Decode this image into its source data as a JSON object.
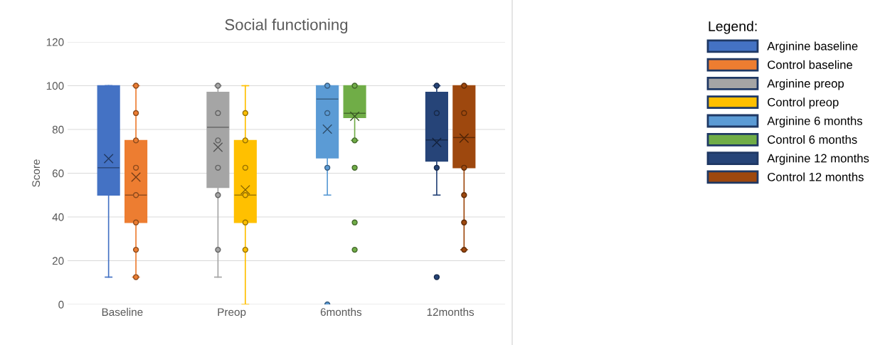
{
  "chart_data": {
    "type": "box",
    "title": "Social functioning",
    "ylabel": "Score",
    "legend_title": "Legend:",
    "categories": [
      "Baseline",
      "Preop",
      "6months",
      "12months"
    ],
    "ylim": [
      0,
      120
    ],
    "yticks": [
      0,
      20,
      40,
      60,
      80,
      100,
      120
    ],
    "grid": "y",
    "legend": "right",
    "series": [
      {
        "name": "Arginine baseline",
        "color": "#4472c4",
        "boxes": [
          {
            "low": 12.5,
            "q1": 50,
            "median": 62.5,
            "q3": 100,
            "high": 100,
            "mean": 66.7
          },
          null,
          null,
          null
        ]
      },
      {
        "name": "Control baseline",
        "color": "#ed7d31",
        "boxes": [
          {
            "low": 12.5,
            "q1": 37.5,
            "median": 50,
            "q3": 75,
            "high": 100,
            "mean": 58.2,
            "outliers": [
              100,
              87.5,
              75,
              62.5,
              50,
              37.5,
              25,
              12.5
            ]
          },
          null,
          null,
          null
        ]
      },
      {
        "name": "Arginine preop",
        "color": "#a5a5a5",
        "boxes": [
          null,
          {
            "low": 12.5,
            "q1": 53.5,
            "median": 81,
            "q3": 97,
            "high": 100,
            "mean": 71.9,
            "outliers": [
              100,
              87.5,
              75,
              62.5,
              50,
              25
            ]
          },
          null,
          null
        ]
      },
      {
        "name": "Control preop",
        "color": "#ffc000",
        "boxes": [
          null,
          {
            "low": 0,
            "q1": 37.5,
            "median": 50,
            "q3": 75,
            "high": 100,
            "mean": 52.4,
            "outliers": [
              87.5,
              75,
              62.5,
              50,
              37.5,
              25
            ]
          },
          null,
          null
        ]
      },
      {
        "name": "Arginine 6 months",
        "color": "#5b9bd5",
        "boxes": [
          null,
          null,
          {
            "low": 50,
            "q1": 67,
            "median": 93.9,
            "q3": 100,
            "high": 100,
            "mean": 80.2,
            "outliers": [
              100,
              87.5,
              62.5,
              0
            ]
          },
          null
        ]
      },
      {
        "name": "Control 6 months",
        "color": "#70ad47",
        "boxes": [
          null,
          null,
          {
            "low": 75,
            "q1": 85.4,
            "median": 87.4,
            "q3": 100,
            "high": 100,
            "mean": 86,
            "outliers": [
              100,
              75,
              62.5,
              37.5,
              25
            ]
          },
          null
        ]
      },
      {
        "name": "Arginine 12 months",
        "color": "#264478",
        "boxes": [
          null,
          null,
          null,
          {
            "low": 50,
            "q1": 65.5,
            "median": 75.2,
            "q3": 97,
            "high": 100,
            "mean": 74.1,
            "outliers": [
              100,
              87.5,
              62.5,
              12.5
            ]
          }
        ]
      },
      {
        "name": "Control 12 months",
        "color": "#9e480e",
        "boxes": [
          null,
          null,
          null,
          {
            "low": 25,
            "q1": 62.5,
            "median": 76.3,
            "q3": 100,
            "high": 100,
            "mean": 76,
            "outliers": [
              100,
              87.5,
              62.5,
              50,
              37.5,
              25
            ]
          }
        ]
      }
    ]
  }
}
